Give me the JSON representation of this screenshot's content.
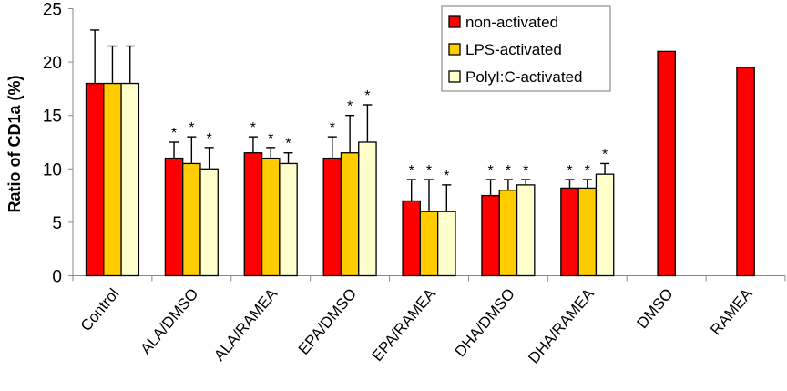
{
  "chart_data": {
    "type": "bar",
    "title": "",
    "xlabel": "",
    "ylabel": "Ratio of CD1a (%)",
    "ylim": [
      0,
      25
    ],
    "yticks": [
      0,
      5,
      10,
      15,
      20,
      25
    ],
    "grid": false,
    "legend_position": "top-right",
    "categories": [
      "Control",
      "ALA/DMSO",
      "ALA/RAMEA",
      "EPA/DMSO",
      "EPA/RAMEA",
      "DHA/DMSO",
      "DHA/RAMEA",
      "DMSO",
      "RAMEA"
    ],
    "series": [
      {
        "name": "non-activated",
        "color": [
          255,
          0,
          0
        ],
        "values": [
          18,
          11,
          11.5,
          11,
          7,
          7.5,
          8.2,
          21,
          19.5
        ],
        "error_upper": [
          23,
          12.5,
          13,
          13,
          9,
          9,
          9,
          null,
          null
        ],
        "significant": [
          false,
          true,
          true,
          true,
          true,
          true,
          true,
          false,
          false
        ]
      },
      {
        "name": "LPS-activated",
        "color": [
          255,
          204,
          0
        ],
        "values": [
          18,
          10.5,
          11,
          11.5,
          6,
          8,
          8.2,
          null,
          null
        ],
        "error_upper": [
          21.5,
          13,
          12,
          15,
          9,
          9,
          9,
          null,
          null
        ],
        "significant": [
          false,
          true,
          true,
          true,
          true,
          true,
          true,
          false,
          false
        ]
      },
      {
        "name": "PolyI:C-activated",
        "color": [
          255,
          255,
          204
        ],
        "values": [
          18,
          10,
          10.5,
          12.5,
          6,
          8.5,
          9.5,
          null,
          null
        ],
        "error_upper": [
          21.5,
          12,
          11.5,
          16,
          8.5,
          9,
          10.5,
          null,
          null
        ],
        "significant": [
          false,
          true,
          true,
          true,
          true,
          true,
          true,
          false,
          false
        ]
      }
    ],
    "significance_marker": "*"
  }
}
